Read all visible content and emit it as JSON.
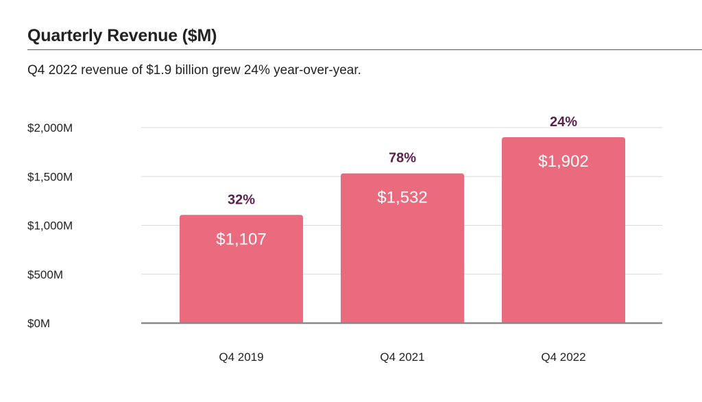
{
  "header": {
    "title": "Quarterly Revenue ($M)",
    "subtitle": "Q4 2022 revenue of $1.9 billion grew 24% year-over-year."
  },
  "colors": {
    "bar": "#eb6b7e",
    "growth_label": "#5c1f4d",
    "grid": "#d9d9d9",
    "axis": "#888888"
  },
  "chart_data": {
    "type": "bar",
    "title": "Quarterly Revenue ($M)",
    "subtitle": "Q4 2022 revenue of $1.9 billion grew 24% year-over-year.",
    "categories": [
      "Q4 2019",
      "Q4 2021",
      "Q4 2022"
    ],
    "values": [
      1107,
      1532,
      1902
    ],
    "value_labels": [
      "$1,107",
      "$1,532",
      "$1,902"
    ],
    "growth_labels": [
      "32%",
      "78%",
      "24%"
    ],
    "ylim": [
      0,
      2000
    ],
    "yticks": [
      0,
      500,
      1000,
      1500,
      2000
    ],
    "ytick_labels": [
      "$0M",
      "$500M",
      "$1,000M",
      "$1,500M",
      "$2,000M"
    ],
    "grid": true,
    "xlabel": "",
    "ylabel": ""
  }
}
